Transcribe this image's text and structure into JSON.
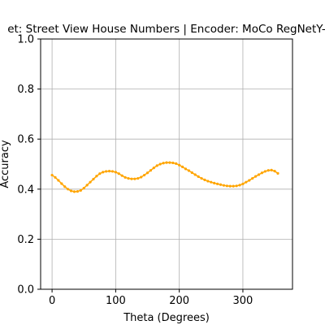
{
  "chart_data": {
    "type": "line",
    "title": "et: Street View House Numbers | Encoder: MoCo RegNetY-",
    "xlabel": "Theta (Degrees)",
    "ylabel": "Accuracy",
    "xlim": [
      -18,
      378
    ],
    "ylim": [
      0.0,
      1.0
    ],
    "xticks": [
      0,
      100,
      200,
      300
    ],
    "xtick_labels": [
      "0",
      "100",
      "200",
      "300"
    ],
    "yticks": [
      0.0,
      0.2,
      0.4,
      0.6,
      0.8,
      1.0
    ],
    "ytick_labels": [
      "0.0",
      "0.2",
      "0.4",
      "0.6",
      "0.8",
      "1.0"
    ],
    "grid": true,
    "series": [
      {
        "color": "#ffa500",
        "marker": "dot",
        "x": [
          0,
          5,
          10,
          15,
          20,
          25,
          30,
          35,
          40,
          45,
          50,
          55,
          60,
          65,
          70,
          75,
          80,
          85,
          90,
          95,
          100,
          105,
          110,
          115,
          120,
          125,
          130,
          135,
          140,
          145,
          150,
          155,
          160,
          165,
          170,
          175,
          180,
          185,
          190,
          195,
          200,
          205,
          210,
          215,
          220,
          225,
          230,
          235,
          240,
          245,
          250,
          255,
          260,
          265,
          270,
          275,
          280,
          285,
          290,
          295,
          300,
          305,
          310,
          315,
          320,
          325,
          330,
          335,
          340,
          345,
          350,
          355
        ],
        "y": [
          0.456,
          0.447,
          0.435,
          0.422,
          0.41,
          0.4,
          0.393,
          0.39,
          0.391,
          0.395,
          0.404,
          0.416,
          0.428,
          0.44,
          0.452,
          0.462,
          0.468,
          0.471,
          0.472,
          0.471,
          0.468,
          0.462,
          0.454,
          0.447,
          0.443,
          0.441,
          0.441,
          0.443,
          0.448,
          0.456,
          0.465,
          0.475,
          0.485,
          0.494,
          0.5,
          0.504,
          0.506,
          0.506,
          0.505,
          0.502,
          0.496,
          0.489,
          0.481,
          0.474,
          0.466,
          0.458,
          0.45,
          0.443,
          0.437,
          0.432,
          0.428,
          0.424,
          0.421,
          0.418,
          0.415,
          0.413,
          0.412,
          0.412,
          0.413,
          0.416,
          0.421,
          0.428,
          0.435,
          0.443,
          0.451,
          0.458,
          0.465,
          0.471,
          0.475,
          0.476,
          0.472,
          0.463
        ]
      }
    ]
  }
}
